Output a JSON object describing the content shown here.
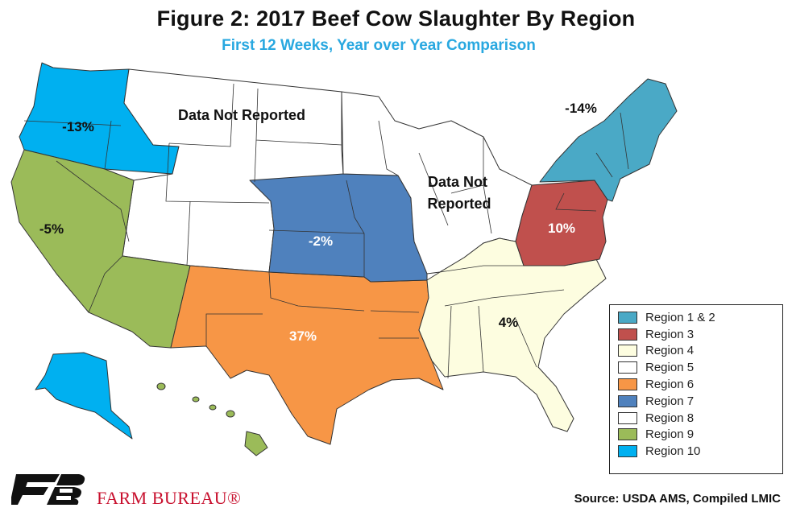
{
  "title": "Figure 2: 2017 Beef Cow Slaughter By Region",
  "subtitle": "First 12 Weeks, Year over Year Comparison",
  "colors": {
    "region_1_2": "#4aa9c6",
    "region_3": "#c0504d",
    "region_4": "#fdfde0",
    "region_5": "#ffffff",
    "region_6": "#f79646",
    "region_7": "#4f81bd",
    "region_8": "#ffffff",
    "region_9": "#9bbb59",
    "region_10": "#00b0f0"
  },
  "map_labels": {
    "region_10": "-13%",
    "region_8": "Data Not Reported",
    "region_1_2": "-14%",
    "region_5_line1": "Data Not",
    "region_5_line2": "Reported",
    "region_9": "-5%",
    "region_7": "-2%",
    "region_3": "10%",
    "region_6": "37%",
    "region_4": "4%"
  },
  "legend": [
    {
      "label": "Region 1 & 2",
      "color": "#4aa9c6"
    },
    {
      "label": "Region 3",
      "color": "#c0504d"
    },
    {
      "label": "Region 4",
      "color": "#fdfde0"
    },
    {
      "label": "Region 5",
      "color": "#ffffff"
    },
    {
      "label": "Region 6",
      "color": "#f79646"
    },
    {
      "label": "Region 7",
      "color": "#4f81bd"
    },
    {
      "label": "Region 8",
      "color": "#ffffff"
    },
    {
      "label": "Region 9",
      "color": "#9bbb59"
    },
    {
      "label": "Region 10",
      "color": "#00b0f0"
    }
  ],
  "footer": {
    "org_name": "FARM BUREAU®",
    "source": "Source: USDA AMS, Compiled LMIC"
  }
}
